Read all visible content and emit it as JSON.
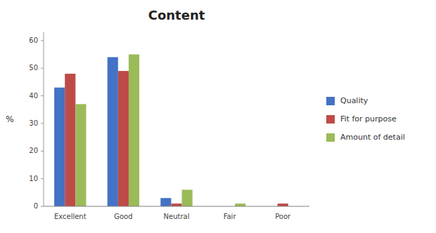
{
  "chart_data": {
    "type": "bar",
    "title": "Content",
    "ylabel": "%",
    "categories": [
      "Excellent",
      "Good",
      "Neutral",
      "Fair",
      "Poor"
    ],
    "series": [
      {
        "name": "Quality",
        "color": "#4472C4",
        "values": [
          43,
          54,
          3,
          0,
          0
        ]
      },
      {
        "name": "Fit for purpose",
        "color": "#BE4B48",
        "values": [
          48,
          49,
          1,
          0,
          1
        ]
      },
      {
        "name": "Amount of detail",
        "color": "#9BBB59",
        "values": [
          37,
          55,
          6,
          1,
          0
        ]
      }
    ],
    "ylim": [
      0,
      63
    ],
    "yticks": [
      0,
      10,
      20,
      30,
      40,
      50,
      60
    ],
    "grid": false,
    "legend": "right"
  }
}
